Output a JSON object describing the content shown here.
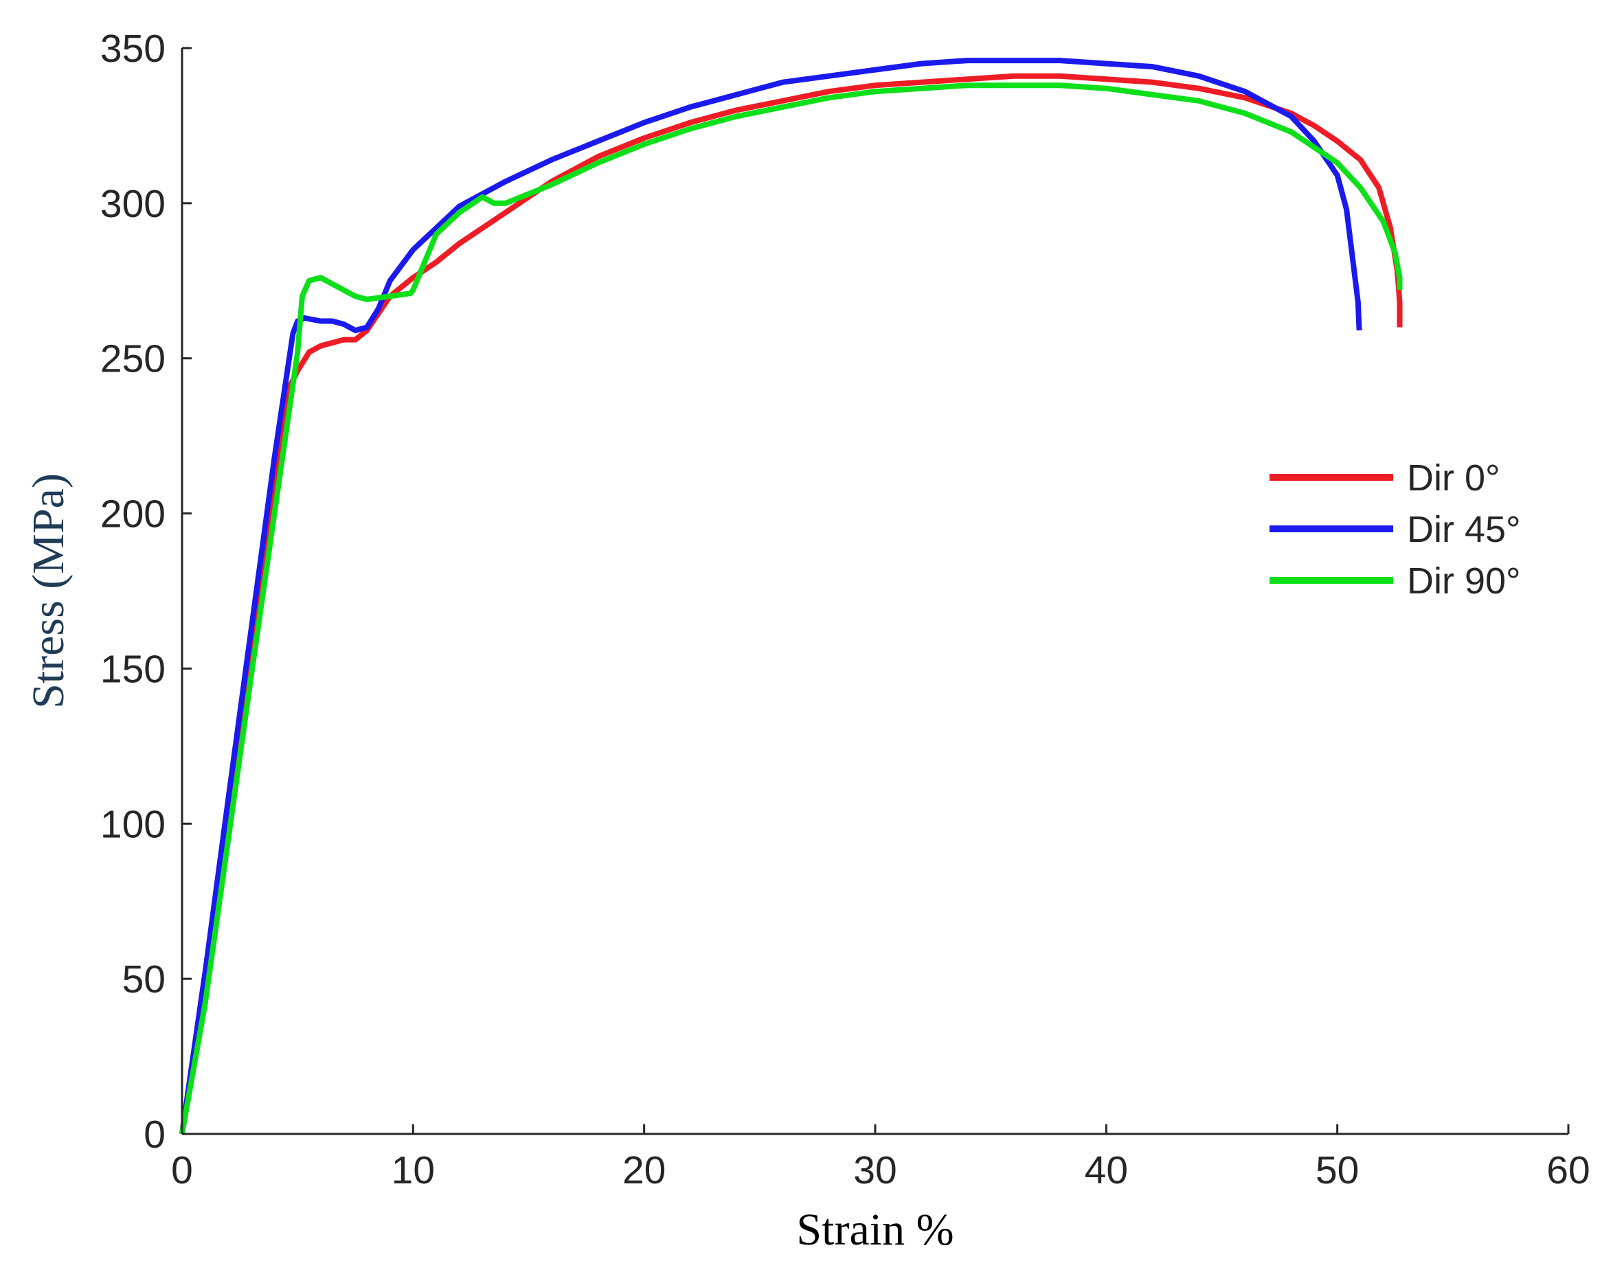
{
  "chart_data": {
    "type": "line",
    "title": "",
    "xlabel": "Strain %",
    "ylabel": "Stress (MPa)",
    "xlim": [
      0,
      60
    ],
    "ylim": [
      0,
      350
    ],
    "xticks": [
      0,
      10,
      20,
      30,
      40,
      50,
      60
    ],
    "yticks": [
      0,
      50,
      100,
      150,
      200,
      250,
      300,
      350
    ],
    "grid": false,
    "legend_position": "right",
    "ylabel_color": "#1f3b57",
    "series": [
      {
        "name": "Dir 0°",
        "color": "#ee1c25",
        "x": [
          0,
          1,
          2,
          3,
          4,
          4.6,
          5,
          5.5,
          6,
          6.5,
          7,
          7.5,
          8,
          9,
          10,
          11,
          12,
          14,
          16,
          18,
          20,
          22,
          24,
          26,
          28,
          30,
          32,
          34,
          36,
          38,
          40,
          42,
          44,
          46,
          48,
          49,
          50,
          51,
          51.8,
          52.3,
          52.6,
          52.7,
          52.7
        ],
        "y": [
          0,
          52,
          104,
          160,
          212,
          240,
          246,
          252,
          254,
          255,
          256,
          256,
          259,
          270,
          276,
          281,
          287,
          297,
          307,
          315,
          321,
          326,
          330,
          333,
          336,
          338,
          339,
          340,
          341,
          341,
          340,
          339,
          337,
          334,
          329,
          325,
          320,
          314,
          305,
          292,
          278,
          268,
          260
        ]
      },
      {
        "name": "Dir 45°",
        "color": "#1a1aee",
        "x": [
          0,
          1,
          2,
          3,
          4,
          4.8,
          5,
          5.3,
          6,
          6.5,
          7,
          7.5,
          8,
          8.5,
          9,
          10,
          11,
          12,
          14,
          16,
          18,
          20,
          22,
          24,
          26,
          28,
          30,
          32,
          34,
          36,
          38,
          40,
          42,
          44,
          46,
          48,
          49,
          50,
          50.4,
          50.7,
          50.9,
          50.95
        ],
        "y": [
          0,
          52,
          108,
          163,
          218,
          258,
          262,
          263,
          262,
          262,
          261,
          259,
          260,
          266,
          275,
          285,
          292,
          299,
          307,
          314,
          320,
          326,
          331,
          335,
          339,
          341,
          343,
          345,
          346,
          346,
          346,
          345,
          344,
          341,
          336,
          328,
          320,
          309,
          298,
          280,
          268,
          259
        ]
      },
      {
        "name": "Dir 90°",
        "color": "#0ddf1a",
        "x": [
          0,
          1,
          2,
          3,
          4,
          5,
          5.2,
          5.5,
          6,
          6.5,
          7,
          7.5,
          8,
          9,
          9.9,
          10,
          11,
          12,
          13,
          13.5,
          14,
          16,
          18,
          20,
          22,
          24,
          26,
          28,
          30,
          32,
          34,
          36,
          38,
          40,
          42,
          44,
          46,
          48,
          49,
          50,
          51,
          52,
          52.5,
          52.7,
          52.7
        ],
        "y": [
          0,
          42,
          95,
          148,
          200,
          252,
          270,
          275,
          276,
          274,
          272,
          270,
          269,
          270,
          271,
          272,
          290,
          297,
          302,
          300,
          300,
          306,
          313,
          319,
          324,
          328,
          331,
          334,
          336,
          337,
          338,
          338,
          338,
          337,
          335,
          333,
          329,
          323,
          318,
          313,
          305,
          294,
          284,
          276,
          272
        ]
      }
    ]
  }
}
